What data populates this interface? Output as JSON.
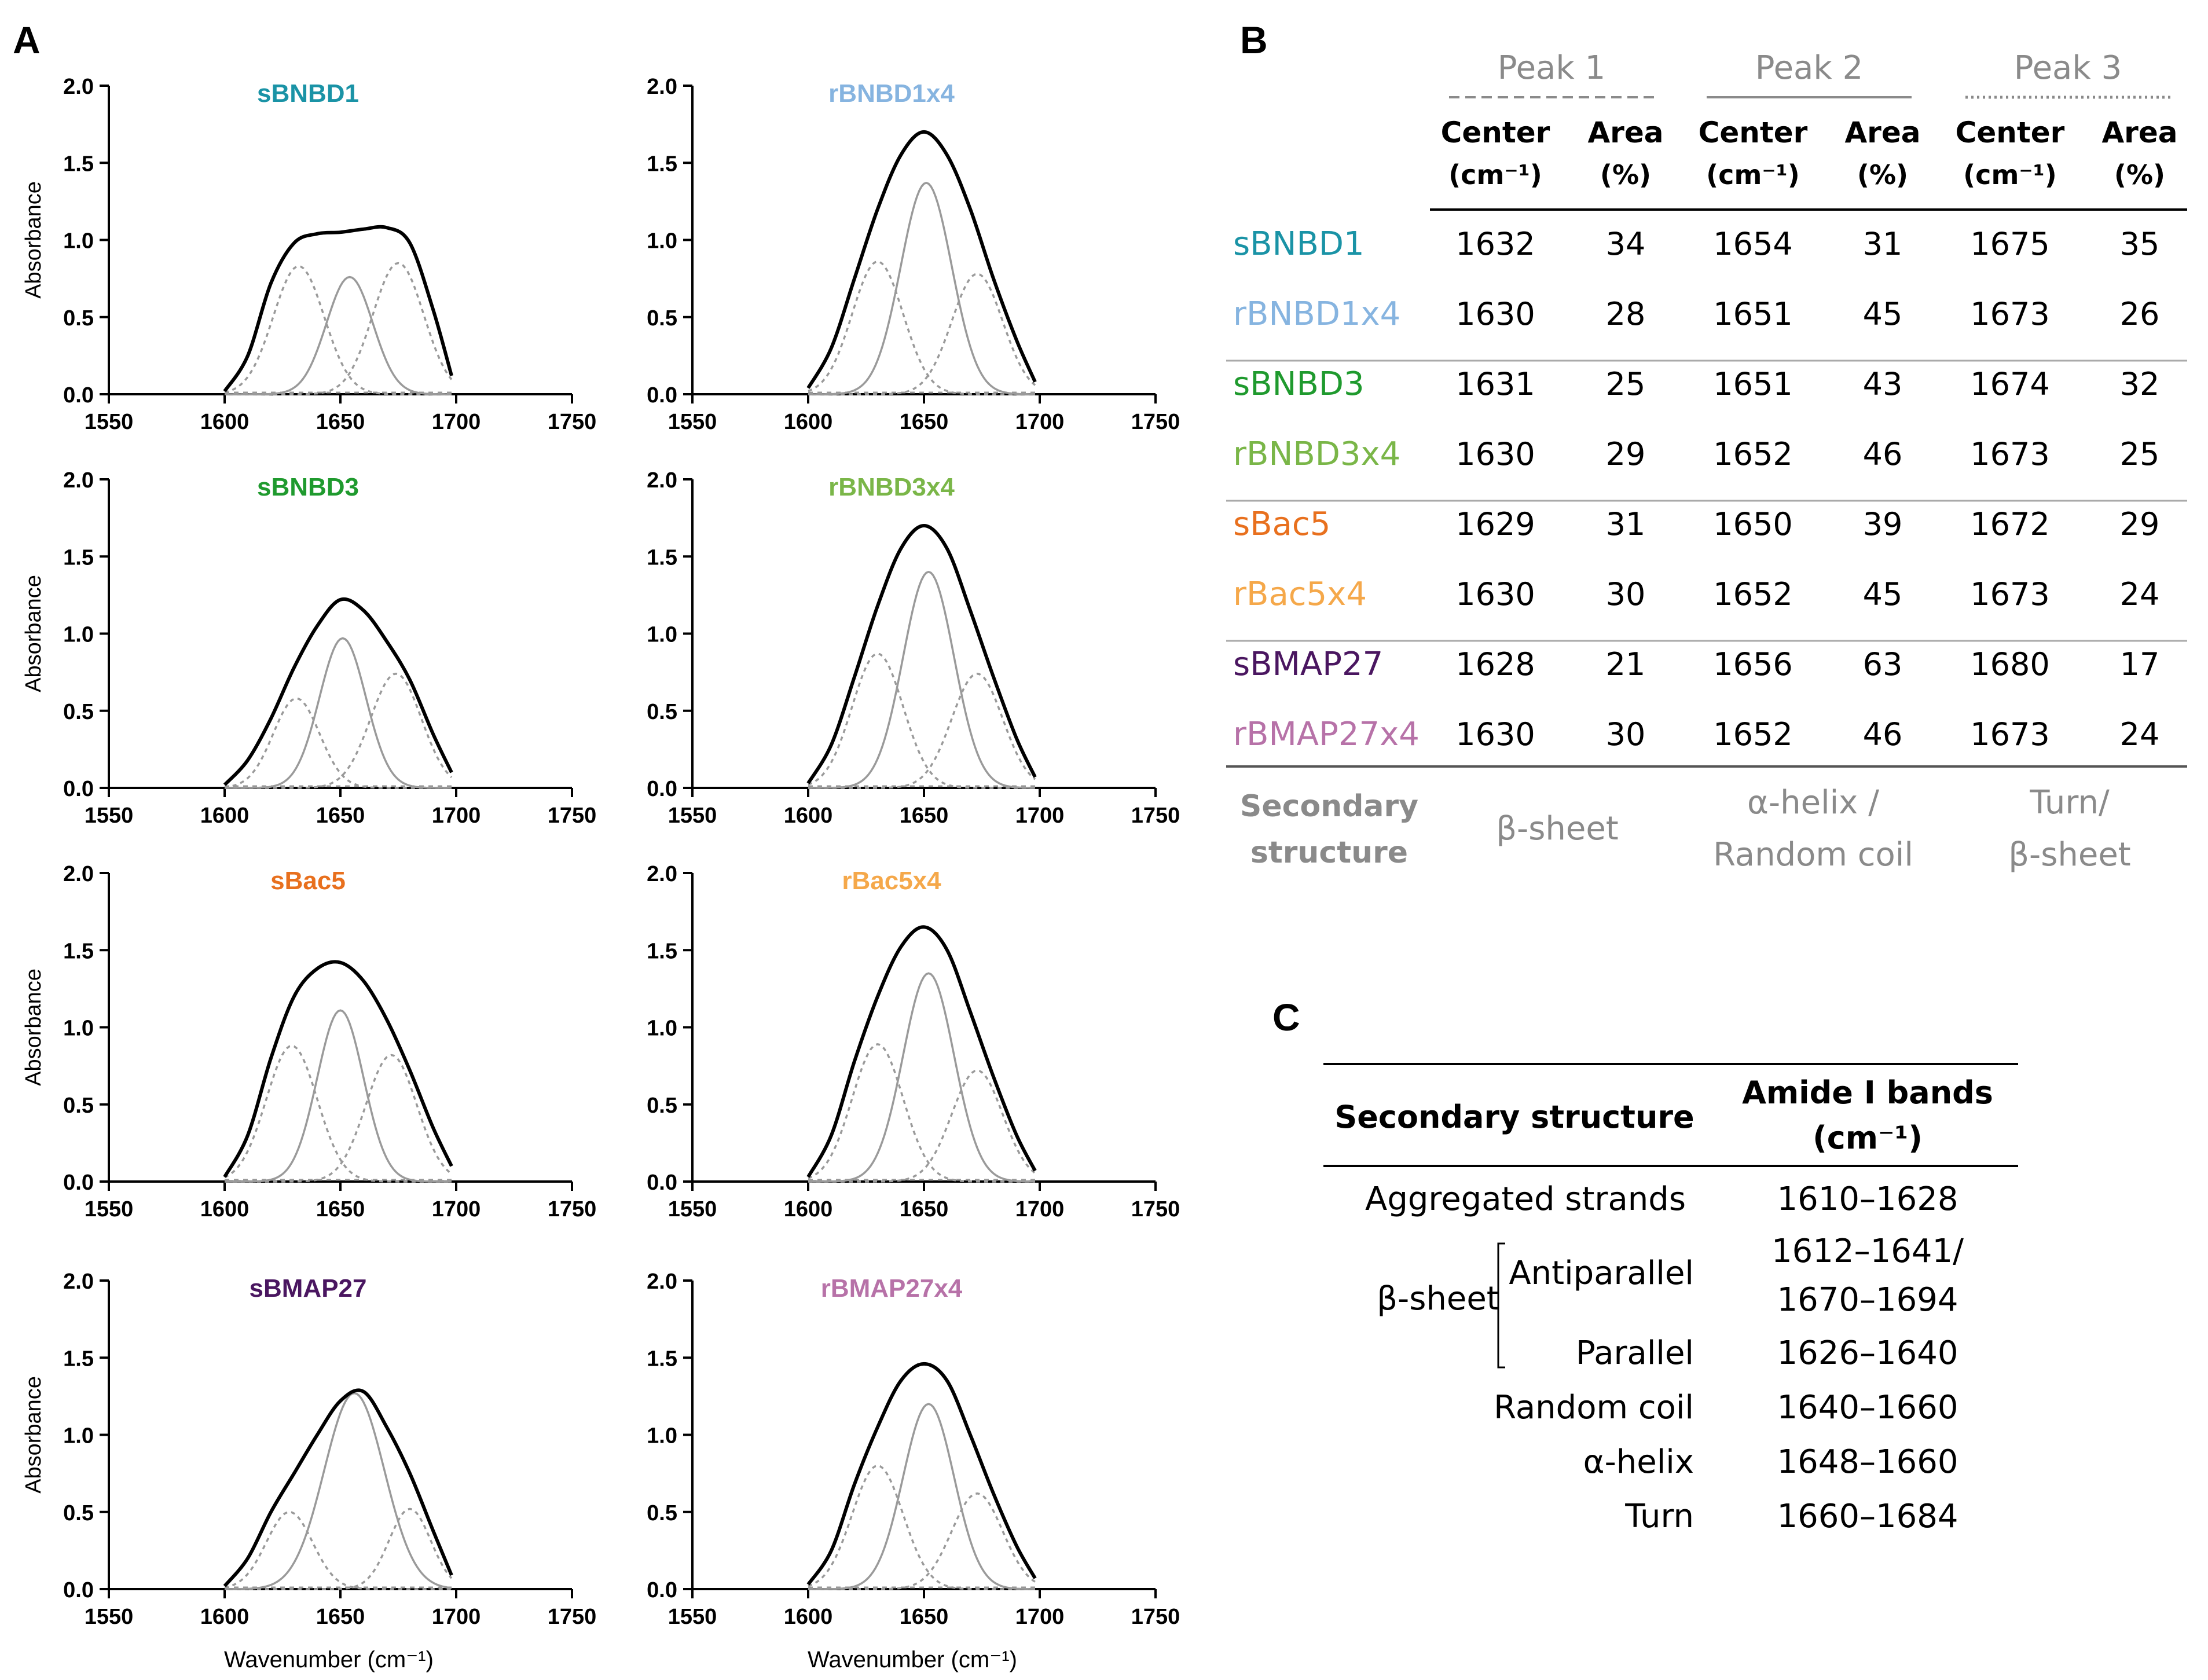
{
  "panel_labels": {
    "a": "A",
    "b": "B",
    "c": "C"
  },
  "colors": {
    "sBNBD1": "#1a93a6",
    "rBNBD1x4": "#86b4e0",
    "sBNBD3": "#1f9a2e",
    "rBNBD3x4": "#7ab648",
    "sBac5": "#e8701e",
    "rBac5x4": "#f5a84a",
    "sBMAP27": "#4a1660",
    "rBMAP27x4": "#b772a8",
    "gray_text": "#8a8a8a",
    "component": "#9a9a9a",
    "envelope": "#000000"
  },
  "chart_data": [
    {
      "type": "line",
      "title": "sBNBD1",
      "ylabel": "Absorbance",
      "xlabel": "",
      "xlim": [
        1550,
        1750
      ],
      "ylim": [
        0,
        2
      ],
      "xticks": [
        "1550",
        "1600",
        "1650",
        "1700",
        "1750"
      ],
      "yticks": [
        "0.0",
        "0.5",
        "1.0",
        "1.5",
        "2.0"
      ],
      "series": [
        {
          "name": "envelope",
          "x": [
            1600,
            1610,
            1620,
            1630,
            1640,
            1650,
            1660,
            1670,
            1680,
            1690,
            1698
          ],
          "y": [
            0.02,
            0.25,
            0.72,
            0.98,
            1.04,
            1.05,
            1.07,
            1.08,
            0.98,
            0.55,
            0.12
          ]
        },
        {
          "name": "peak1",
          "center": 1632,
          "height": 0.83,
          "width": 11
        },
        {
          "name": "peak2",
          "center": 1654,
          "height": 0.76,
          "width": 10
        },
        {
          "name": "peak3",
          "center": 1675,
          "height": 0.85,
          "width": 11
        }
      ]
    },
    {
      "type": "line",
      "title": "rBNBD1x4",
      "ylabel": "",
      "xlabel": "",
      "xlim": [
        1550,
        1750
      ],
      "ylim": [
        0,
        2
      ],
      "xticks": [
        "1550",
        "1600",
        "1650",
        "1700",
        "1750"
      ],
      "yticks": [
        "0.0",
        "0.5",
        "1.0",
        "1.5",
        "2.0"
      ],
      "series": [
        {
          "name": "envelope",
          "x": [
            1600,
            1610,
            1620,
            1630,
            1640,
            1650,
            1660,
            1670,
            1680,
            1690,
            1698
          ],
          "y": [
            0.04,
            0.3,
            0.75,
            1.2,
            1.55,
            1.7,
            1.55,
            1.2,
            0.75,
            0.35,
            0.08
          ]
        },
        {
          "name": "peak1",
          "center": 1630,
          "height": 0.86,
          "width": 11
        },
        {
          "name": "peak2",
          "center": 1651,
          "height": 1.37,
          "width": 11
        },
        {
          "name": "peak3",
          "center": 1673,
          "height": 0.78,
          "width": 11
        }
      ]
    },
    {
      "type": "line",
      "title": "sBNBD3",
      "ylabel": "Absorbance",
      "xlabel": "",
      "xlim": [
        1550,
        1750
      ],
      "ylim": [
        0,
        2
      ],
      "xticks": [
        "1550",
        "1600",
        "1650",
        "1700",
        "1750"
      ],
      "yticks": [
        "0.0",
        "0.5",
        "1.0",
        "1.5",
        "2.0"
      ],
      "series": [
        {
          "name": "envelope",
          "x": [
            1600,
            1610,
            1620,
            1630,
            1640,
            1650,
            1660,
            1670,
            1680,
            1690,
            1698
          ],
          "y": [
            0.02,
            0.18,
            0.45,
            0.78,
            1.05,
            1.22,
            1.15,
            0.95,
            0.7,
            0.35,
            0.1
          ]
        },
        {
          "name": "peak1",
          "center": 1631,
          "height": 0.58,
          "width": 10
        },
        {
          "name": "peak2",
          "center": 1651,
          "height": 0.97,
          "width": 10
        },
        {
          "name": "peak3",
          "center": 1674,
          "height": 0.74,
          "width": 11
        }
      ]
    },
    {
      "type": "line",
      "title": "rBNBD3x4",
      "ylabel": "",
      "xlabel": "",
      "xlim": [
        1550,
        1750
      ],
      "ylim": [
        0,
        2
      ],
      "xticks": [
        "1550",
        "1600",
        "1650",
        "1700",
        "1750"
      ],
      "yticks": [
        "0.0",
        "0.5",
        "1.0",
        "1.5",
        "2.0"
      ],
      "series": [
        {
          "name": "envelope",
          "x": [
            1600,
            1610,
            1620,
            1630,
            1640,
            1650,
            1660,
            1670,
            1680,
            1690,
            1698
          ],
          "y": [
            0.03,
            0.28,
            0.72,
            1.18,
            1.55,
            1.7,
            1.55,
            1.15,
            0.72,
            0.32,
            0.07
          ]
        },
        {
          "name": "peak1",
          "center": 1630,
          "height": 0.87,
          "width": 11
        },
        {
          "name": "peak2",
          "center": 1652,
          "height": 1.4,
          "width": 11
        },
        {
          "name": "peak3",
          "center": 1673,
          "height": 0.74,
          "width": 11
        }
      ]
    },
    {
      "type": "line",
      "title": "sBac5",
      "ylabel": "Absorbance",
      "xlabel": "",
      "xlim": [
        1550,
        1750
      ],
      "ylim": [
        0,
        2
      ],
      "xticks": [
        "1550",
        "1600",
        "1650",
        "1700",
        "1750"
      ],
      "yticks": [
        "0.0",
        "0.5",
        "1.0",
        "1.5",
        "2.0"
      ],
      "series": [
        {
          "name": "envelope",
          "x": [
            1600,
            1610,
            1620,
            1630,
            1640,
            1650,
            1660,
            1670,
            1680,
            1690,
            1698
          ],
          "y": [
            0.03,
            0.3,
            0.8,
            1.2,
            1.38,
            1.42,
            1.3,
            1.05,
            0.72,
            0.35,
            0.1
          ]
        },
        {
          "name": "peak1",
          "center": 1629,
          "height": 0.88,
          "width": 11
        },
        {
          "name": "peak2",
          "center": 1650,
          "height": 1.11,
          "width": 10
        },
        {
          "name": "peak3",
          "center": 1672,
          "height": 0.82,
          "width": 11
        }
      ]
    },
    {
      "type": "line",
      "title": "rBac5x4",
      "ylabel": "",
      "xlabel": "",
      "xlim": [
        1550,
        1750
      ],
      "ylim": [
        0,
        2
      ],
      "xticks": [
        "1550",
        "1600",
        "1650",
        "1700",
        "1750"
      ],
      "yticks": [
        "0.0",
        "0.5",
        "1.0",
        "1.5",
        "2.0"
      ],
      "series": [
        {
          "name": "envelope",
          "x": [
            1600,
            1610,
            1620,
            1630,
            1640,
            1650,
            1660,
            1670,
            1680,
            1690,
            1698
          ],
          "y": [
            0.03,
            0.3,
            0.78,
            1.2,
            1.52,
            1.65,
            1.5,
            1.1,
            0.68,
            0.3,
            0.07
          ]
        },
        {
          "name": "peak1",
          "center": 1630,
          "height": 0.89,
          "width": 11
        },
        {
          "name": "peak2",
          "center": 1652,
          "height": 1.35,
          "width": 11
        },
        {
          "name": "peak3",
          "center": 1673,
          "height": 0.72,
          "width": 11
        }
      ]
    },
    {
      "type": "line",
      "title": "sBMAP27",
      "ylabel": "Absorbance",
      "xlabel": "Wavenumber (cm⁻¹)",
      "xlim": [
        1550,
        1750
      ],
      "ylim": [
        0,
        2
      ],
      "xticks": [
        "1550",
        "1600",
        "1650",
        "1700",
        "1750"
      ],
      "yticks": [
        "0.0",
        "0.5",
        "1.0",
        "1.5",
        "2.0"
      ],
      "series": [
        {
          "name": "envelope",
          "x": [
            1600,
            1610,
            1620,
            1630,
            1640,
            1650,
            1660,
            1670,
            1680,
            1690,
            1698
          ],
          "y": [
            0.02,
            0.2,
            0.5,
            0.75,
            1.0,
            1.22,
            1.28,
            1.05,
            0.75,
            0.38,
            0.09
          ]
        },
        {
          "name": "peak1",
          "center": 1628,
          "height": 0.5,
          "width": 10
        },
        {
          "name": "peak2",
          "center": 1656,
          "height": 1.27,
          "width": 13
        },
        {
          "name": "peak3",
          "center": 1680,
          "height": 0.52,
          "width": 9
        }
      ]
    },
    {
      "type": "line",
      "title": "rBMAP27x4",
      "ylabel": "",
      "xlabel": "Wavenumber (cm⁻¹)",
      "xlim": [
        1550,
        1750
      ],
      "ylim": [
        0,
        2
      ],
      "xticks": [
        "1550",
        "1600",
        "1650",
        "1700",
        "1750"
      ],
      "yticks": [
        "0.0",
        "0.5",
        "1.0",
        "1.5",
        "2.0"
      ],
      "series": [
        {
          "name": "envelope",
          "x": [
            1600,
            1610,
            1620,
            1630,
            1640,
            1650,
            1660,
            1670,
            1680,
            1690,
            1698
          ],
          "y": [
            0.03,
            0.25,
            0.68,
            1.05,
            1.35,
            1.46,
            1.35,
            1.0,
            0.62,
            0.28,
            0.07
          ]
        },
        {
          "name": "peak1",
          "center": 1630,
          "height": 0.8,
          "width": 11
        },
        {
          "name": "peak2",
          "center": 1652,
          "height": 1.2,
          "width": 11
        },
        {
          "name": "peak3",
          "center": 1673,
          "height": 0.62,
          "width": 11
        }
      ]
    }
  ],
  "table_b": {
    "peak_headers": [
      "Peak 1",
      "Peak 2",
      "Peak 3"
    ],
    "sub_headers": [
      {
        "l1": "Center",
        "l2": "(cm⁻¹)"
      },
      {
        "l1": "Area",
        "l2": "(%)"
      },
      {
        "l1": "Center",
        "l2": "(cm⁻¹)"
      },
      {
        "l1": "Area",
        "l2": "(%)"
      },
      {
        "l1": "Center",
        "l2": "(cm⁻¹)"
      },
      {
        "l1": "Area",
        "l2": "(%)"
      }
    ],
    "rows": [
      {
        "name": "sBNBD1",
        "color": "#1a93a6",
        "values": [
          "1632",
          "34",
          "1654",
          "31",
          "1675",
          "35"
        ]
      },
      {
        "name": "rBNBD1x4",
        "color": "#86b4e0",
        "values": [
          "1630",
          "28",
          "1651",
          "45",
          "1673",
          "26"
        ]
      },
      {
        "name": "sBNBD3",
        "color": "#1f9a2e",
        "values": [
          "1631",
          "25",
          "1651",
          "43",
          "1674",
          "32"
        ]
      },
      {
        "name": "rBNBD3x4",
        "color": "#7ab648",
        "values": [
          "1630",
          "29",
          "1652",
          "46",
          "1673",
          "25"
        ]
      },
      {
        "name": "sBac5",
        "color": "#e8701e",
        "values": [
          "1629",
          "31",
          "1650",
          "39",
          "1672",
          "29"
        ]
      },
      {
        "name": "rBac5x4",
        "color": "#f5a84a",
        "values": [
          "1630",
          "30",
          "1652",
          "45",
          "1673",
          "24"
        ]
      },
      {
        "name": "sBMAP27",
        "color": "#4a1660",
        "values": [
          "1628",
          "21",
          "1656",
          "63",
          "1680",
          "17"
        ]
      },
      {
        "name": "rBMAP27x4",
        "color": "#b772a8",
        "values": [
          "1630",
          "30",
          "1652",
          "46",
          "1673",
          "24"
        ]
      }
    ],
    "footer_label": {
      "l1": "Secondary",
      "l2": "structure"
    },
    "footer_values": [
      {
        "l1": "β-sheet",
        "l2": ""
      },
      {
        "l1": "α-helix /",
        "l2": "Random coil"
      },
      {
        "l1": "Turn/",
        "l2": "β-sheet"
      }
    ]
  },
  "table_c": {
    "header_left": "Secondary structure",
    "header_right_l1": "Amide I bands",
    "header_right_l2": "(cm⁻¹)",
    "aggregated": {
      "label": "Aggregated strands",
      "value": "1610–1628"
    },
    "beta_sheet_label": "β-sheet",
    "antiparallel": {
      "label": "Antiparallel",
      "value_l1": "1612–1641/",
      "value_l2": "1670–1694"
    },
    "parallel": {
      "label": "Parallel",
      "value": "1626–1640"
    },
    "random_coil": {
      "label": "Random coil",
      "value": "1640–1660"
    },
    "alpha_helix": {
      "label": "α-helix",
      "value": "1648–1660"
    },
    "turn": {
      "label": "Turn",
      "value": "1660–1684"
    }
  }
}
